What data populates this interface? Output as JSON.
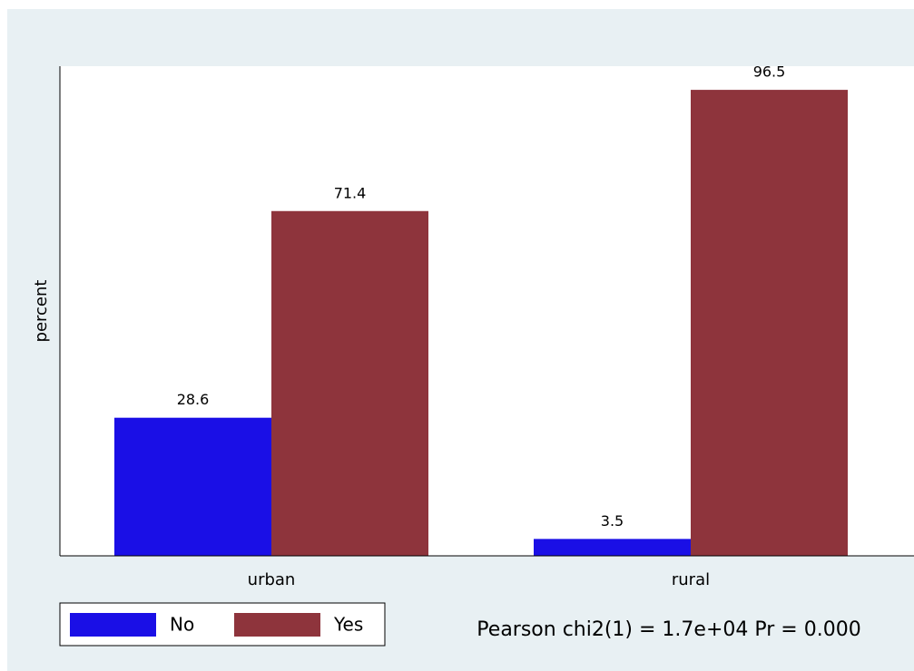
{
  "chart_data": {
    "type": "bar",
    "categories": [
      "urban",
      "rural"
    ],
    "series": [
      {
        "name": "No",
        "color": "#1a0fe6",
        "values": [
          28.6,
          3.5
        ]
      },
      {
        "name": "Yes",
        "color": "#8e343c",
        "values": [
          71.4,
          96.5
        ]
      }
    ],
    "y_label": "percent",
    "ylim": [
      0,
      101.4
    ],
    "annotation": "Pearson chi2(1) =  1.7e+04   Pr = 0.000"
  }
}
